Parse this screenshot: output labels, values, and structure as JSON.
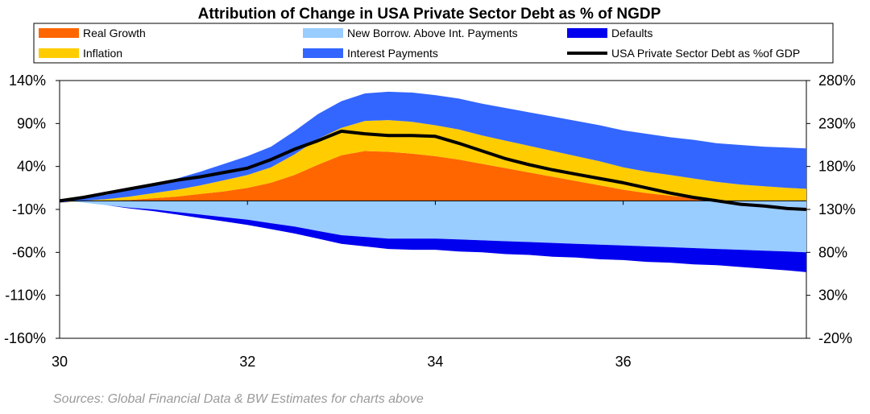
{
  "chart_data": {
    "type": "area",
    "title": "Attribution of Change in USA Private Sector Debt as % of NGDP",
    "source": "Sources: Global Financial Data & BW Estimates for charts above",
    "x": [
      30,
      30.25,
      30.5,
      30.75,
      31,
      31.25,
      31.5,
      31.75,
      32,
      32.25,
      32.5,
      32.75,
      33,
      33.25,
      33.5,
      33.75,
      34,
      34.25,
      34.5,
      34.75,
      35,
      35.25,
      35.5,
      35.75,
      36,
      36.25,
      36.5,
      36.75,
      37,
      37.25,
      37.5,
      37.75,
      37.95
    ],
    "x_ticks": [
      30,
      32,
      34,
      36
    ],
    "x_tick_labels": [
      "30",
      "32",
      "34",
      "36"
    ],
    "y_left": {
      "ylim": [
        -160,
        140
      ],
      "ticks": [
        140,
        90,
        40,
        -10,
        -60,
        -110,
        -160
      ],
      "tick_labels": [
        "140%",
        "90%",
        "40%",
        "-10%",
        "-60%",
        "-110%",
        "-160%"
      ]
    },
    "y_right": {
      "ylim": [
        -20,
        280
      ],
      "ticks": [
        280,
        230,
        180,
        130,
        80,
        30,
        -20
      ],
      "tick_labels": [
        "280%",
        "230%",
        "180%",
        "130%",
        "80%",
        "30%",
        "-20%"
      ]
    },
    "positive_series": [
      {
        "name": "Real Growth",
        "color": "#FF6600",
        "values": [
          -2,
          -1,
          0,
          1,
          3,
          5,
          8,
          11,
          15,
          21,
          30,
          42,
          53,
          58,
          57,
          55,
          52,
          48,
          43,
          38,
          33,
          28,
          23,
          18,
          13,
          9,
          6,
          3,
          0,
          -2,
          -3,
          -4,
          -4
        ]
      },
      {
        "name": "Inflation",
        "color": "#FFCC00",
        "values": [
          0,
          1,
          2,
          4,
          6,
          8,
          10,
          13,
          15,
          18,
          24,
          30,
          32,
          35,
          37,
          37,
          36,
          35,
          33,
          32,
          31,
          30,
          29,
          28,
          26,
          25,
          24,
          23,
          22,
          21,
          20,
          19,
          18
        ]
      },
      {
        "name": "Interest Payments",
        "color": "#3366FF",
        "values": [
          1,
          3,
          5,
          8,
          10,
          13,
          16,
          19,
          22,
          24,
          27,
          29,
          31,
          32,
          33,
          34,
          35,
          36,
          37,
          38,
          39,
          40,
          41,
          42,
          43,
          44,
          44,
          45,
          45,
          46,
          46,
          47,
          47
        ]
      }
    ],
    "negative_series": [
      {
        "name": "New Borrow. Above Int. Payments",
        "color": "#99CCFF",
        "values": [
          0,
          -2,
          -5,
          -8,
          -10,
          -13,
          -16,
          -19,
          -22,
          -26,
          -30,
          -35,
          -40,
          -42,
          -44,
          -44,
          -44,
          -45,
          -46,
          -47,
          -48,
          -49,
          -50,
          -51,
          -52,
          -53,
          -54,
          -55,
          -56,
          -57,
          -58,
          -59,
          -60
        ]
      },
      {
        "name": "Defaults",
        "color": "#0000EE",
        "values": [
          0,
          0,
          0,
          -1,
          -2,
          -3,
          -4,
          -5,
          -6,
          -7,
          -8,
          -9,
          -10,
          -11,
          -12,
          -13,
          -13,
          -14,
          -14,
          -15,
          -15,
          -16,
          -16,
          -17,
          -17,
          -18,
          -18,
          -19,
          -19,
          -20,
          -21,
          -22,
          -23
        ]
      }
    ],
    "line_series": {
      "name": "USA Private Sector Debt as %of GDP",
      "color": "#000000",
      "axis": "right",
      "values": [
        140,
        144,
        149,
        154,
        159,
        164,
        168,
        173,
        178,
        188,
        200,
        210,
        221,
        218,
        216,
        216,
        215,
        207,
        198,
        189,
        182,
        176,
        171,
        166,
        161,
        155,
        149,
        144,
        140,
        136,
        134,
        131,
        130
      ]
    },
    "legend": [
      {
        "label": "Real Growth",
        "color": "#FF6600",
        "kind": "area"
      },
      {
        "label": "New Borrow. Above Int. Payments",
        "color": "#99CCFF",
        "kind": "area"
      },
      {
        "label": "Defaults",
        "color": "#0000EE",
        "kind": "area"
      },
      {
        "label": "Inflation",
        "color": "#FFCC00",
        "kind": "area"
      },
      {
        "label": "Interest Payments",
        "color": "#3366FF",
        "kind": "area"
      },
      {
        "label": "USA Private Sector Debt as %of GDP",
        "color": "#000000",
        "kind": "line"
      }
    ],
    "grid": false,
    "legend_position": "top"
  }
}
